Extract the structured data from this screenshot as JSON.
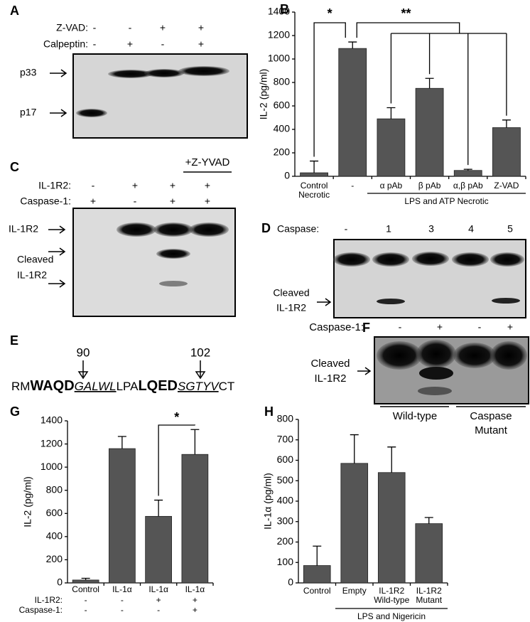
{
  "panels": {
    "letters": [
      "A",
      "B",
      "C",
      "D",
      "E",
      "F",
      "G",
      "H"
    ]
  },
  "blot_a": {
    "rows": [
      {
        "label": "Z-VAD:",
        "signs": [
          "-",
          "-",
          "+",
          "+"
        ]
      },
      {
        "label": "Calpeptin:",
        "signs": [
          "-",
          "+",
          "-",
          "+"
        ]
      }
    ],
    "bands": [
      "p33",
      "p17"
    ]
  },
  "blot_c": {
    "treatment": "+Z-YVAD",
    "rows": [
      {
        "label": "IL-1R2:",
        "signs": [
          "-",
          "+",
          "+",
          "+"
        ]
      },
      {
        "label": "Caspase-1:",
        "signs": [
          "+",
          "-",
          "+",
          "+"
        ]
      }
    ],
    "bands": [
      "IL-1R2",
      "Cleaved",
      "IL-1R2"
    ]
  },
  "blot_d": {
    "label": "Caspase:",
    "lanes": [
      "-",
      "1",
      "3",
      "4",
      "5"
    ],
    "band": [
      "Cleaved",
      "IL-1R2"
    ]
  },
  "sequence": {
    "sites": [
      "90",
      "102"
    ],
    "segments": [
      "RM",
      "WAQD",
      "GALWL",
      "LPA",
      "LQED",
      "SGTYV",
      "CT"
    ]
  },
  "blot_f": {
    "label": "Caspase-1:",
    "signs": [
      "-",
      "+",
      "-",
      "+"
    ],
    "band": [
      "Cleaved",
      "IL-1R2"
    ],
    "groups": [
      [
        "Wild-type"
      ],
      [
        "Caspase",
        "Mutant"
      ]
    ]
  },
  "chart_data": [
    {
      "type": "bar",
      "ylabel": "IL-2 (pg/ml)",
      "categories": [
        [
          "Control",
          "Necrotic"
        ],
        [
          "-"
        ],
        [
          "α pAb"
        ],
        [
          "β pAb"
        ],
        [
          "α,β pAb"
        ],
        [
          "Z-VAD"
        ]
      ],
      "group_label": "LPS and ATP Necrotic",
      "values": [
        30,
        1090,
        490,
        750,
        50,
        415
      ],
      "errors": [
        100,
        55,
        95,
        85,
        10,
        65
      ],
      "color": "#555555",
      "ylim": [
        0,
        1400
      ],
      "yticks": [
        0,
        200,
        400,
        600,
        800,
        1000,
        1200,
        1400
      ],
      "significance": [
        "*",
        "**"
      ]
    },
    {
      "type": "bar",
      "ylabel": "IL-2 (pg/ml)",
      "categories": [
        [
          "Control"
        ],
        [
          "IL-1α"
        ],
        [
          "IL-1α"
        ],
        [
          "IL-1α"
        ]
      ],
      "rows": [
        {
          "label": "IL-1R2:",
          "signs": [
            "-",
            "-",
            "+",
            "+"
          ]
        },
        {
          "label": "Caspase-1:",
          "signs": [
            "-",
            "-",
            "-",
            "+"
          ]
        }
      ],
      "values": [
        25,
        1160,
        575,
        1110
      ],
      "errors": [
        15,
        105,
        140,
        215
      ],
      "color": "#555555",
      "ylim": [
        0,
        1400
      ],
      "yticks": [
        0,
        200,
        400,
        600,
        800,
        1000,
        1200,
        1400
      ],
      "significance": [
        "*"
      ]
    },
    {
      "type": "bar",
      "ylabel": "IL-1α (pg/ml)",
      "categories": [
        [
          "Control"
        ],
        [
          "Empty"
        ],
        [
          "IL-1R2",
          "Wild-type"
        ],
        [
          "IL-1R2",
          "Mutant"
        ]
      ],
      "group_label": "LPS and Nigericin",
      "values": [
        85,
        585,
        540,
        290
      ],
      "errors": [
        95,
        140,
        125,
        30
      ],
      "color": "#555555",
      "ylim": [
        0,
        800
      ],
      "yticks": [
        0,
        100,
        200,
        300,
        400,
        500,
        600,
        700,
        800
      ]
    }
  ]
}
